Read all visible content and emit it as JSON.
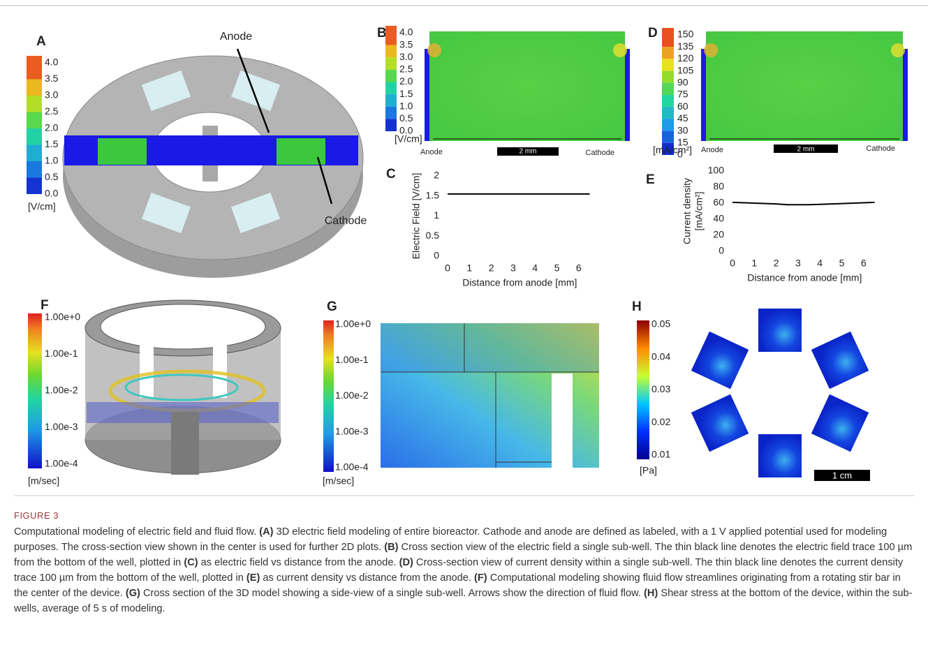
{
  "figure_label": "FIGURE 3",
  "panels": {
    "A": {
      "label": "A",
      "colorbar": [
        "4.0",
        "3.5",
        "3.0",
        "2.5",
        "2.0",
        "1.5",
        "1.0",
        "0.5",
        "0.0"
      ],
      "unit": "[V/cm]",
      "annotations": [
        "Anode",
        "Cathode"
      ]
    },
    "B": {
      "label": "B",
      "colorbar": [
        "4.0",
        "3.5",
        "3.0",
        "2.5",
        "2.0",
        "1.5",
        "1.0",
        "0.5",
        "0.0"
      ],
      "unit": "[V/cm]",
      "left": "Anode",
      "right": "Cathode",
      "scale": "2 mm"
    },
    "D": {
      "label": "D",
      "colorbar": [
        "150",
        "135",
        "120",
        "105",
        "90",
        "75",
        "60",
        "45",
        "30",
        "15",
        "0"
      ],
      "unit": "[mA/cm²]",
      "left": "Anode",
      "right": "Cathode",
      "scale": "2 mm"
    },
    "F": {
      "label": "F",
      "colorbar": [
        "1.00e+0",
        "1.00e-1",
        "1.00e-2",
        "1.00e-3",
        "1.00e-4"
      ],
      "unit": "[m/sec]"
    },
    "G": {
      "label": "G",
      "colorbar": [
        "1.00e+0",
        "1.00e-1",
        "1.00e-2",
        "1.00e-3",
        "1.00e-4"
      ],
      "unit": "[m/sec]"
    },
    "H": {
      "label": "H",
      "colorbar": [
        "0.05",
        "0.04",
        "0.03",
        "0.02",
        "0.01"
      ],
      "unit": "[Pa]",
      "scale": "1 cm"
    }
  },
  "chart_data": [
    {
      "type": "line",
      "panel": "C",
      "xlabel": "Distance from anode [mm]",
      "ylabel": "Electric Field [V/cm]",
      "x": [
        0,
        1,
        2,
        3,
        4,
        5,
        6.5
      ],
      "values": [
        1.55,
        1.55,
        1.55,
        1.55,
        1.55,
        1.55,
        1.55
      ],
      "color": "#000000",
      "xlim": [
        0,
        6.6
      ],
      "xticks": [
        0,
        1,
        2,
        3,
        4,
        5,
        6
      ],
      "ylim": [
        0,
        2
      ],
      "yticks": [
        0,
        0.5,
        1,
        1.5,
        2
      ]
    },
    {
      "type": "line",
      "panel": "E",
      "xlabel": "Distance from anode [mm]",
      "ylabel": [
        "Current density",
        "[mA/cm²]"
      ],
      "x": [
        0,
        1,
        2,
        2.5,
        3,
        3.5,
        4,
        5,
        6.5
      ],
      "values": [
        61,
        60,
        59,
        58,
        58,
        58,
        58.5,
        59.5,
        61
      ],
      "color": "#000000",
      "xlim": [
        0,
        6.6
      ],
      "xticks": [
        0,
        1,
        2,
        3,
        4,
        5,
        6
      ],
      "ylim": [
        0,
        100
      ],
      "yticks": [
        0,
        20,
        40,
        60,
        80,
        100
      ]
    }
  ],
  "caption": [
    {
      "text": "Computational modeling of electric field and fluid flow. ",
      "bold": false
    },
    {
      "text": "(A)",
      "bold": true
    },
    {
      "text": " 3D electric field modeling of entire bioreactor. Cathode and anode are defined as labeled, with a 1 V applied potential used for modeling purposes. The cross-section view shown in the center is used for further 2D plots. ",
      "bold": false
    },
    {
      "text": "(B)",
      "bold": true
    },
    {
      "text": " Cross section view of the electric field a single sub-well. The thin black line denotes the electric field trace 100 µm from the bottom of the well, plotted in ",
      "bold": false
    },
    {
      "text": "(C)",
      "bold": true
    },
    {
      "text": " as electric field vs distance from the anode. ",
      "bold": false
    },
    {
      "text": "(D)",
      "bold": true
    },
    {
      "text": " Cross-section view of current density within a single sub-well. The thin black line denotes the current density trace 100 µm from the bottom of the well, plotted in ",
      "bold": false
    },
    {
      "text": "(E)",
      "bold": true
    },
    {
      "text": " as current density vs distance from the anode. ",
      "bold": false
    },
    {
      "text": "(F)",
      "bold": true
    },
    {
      "text": " Computational modeling showing fluid flow streamlines originating from a rotating stir bar in the center of the device. ",
      "bold": false
    },
    {
      "text": "(G)",
      "bold": true
    },
    {
      "text": " Cross section of the 3D model showing a side-view of a single sub-well. Arrows show the direction of fluid flow. ",
      "bold": false
    },
    {
      "text": "(H)",
      "bold": true
    },
    {
      "text": " Shear stress at the bottom of the device, within the sub-wells, average of 5 s of modeling.",
      "bold": false
    }
  ]
}
